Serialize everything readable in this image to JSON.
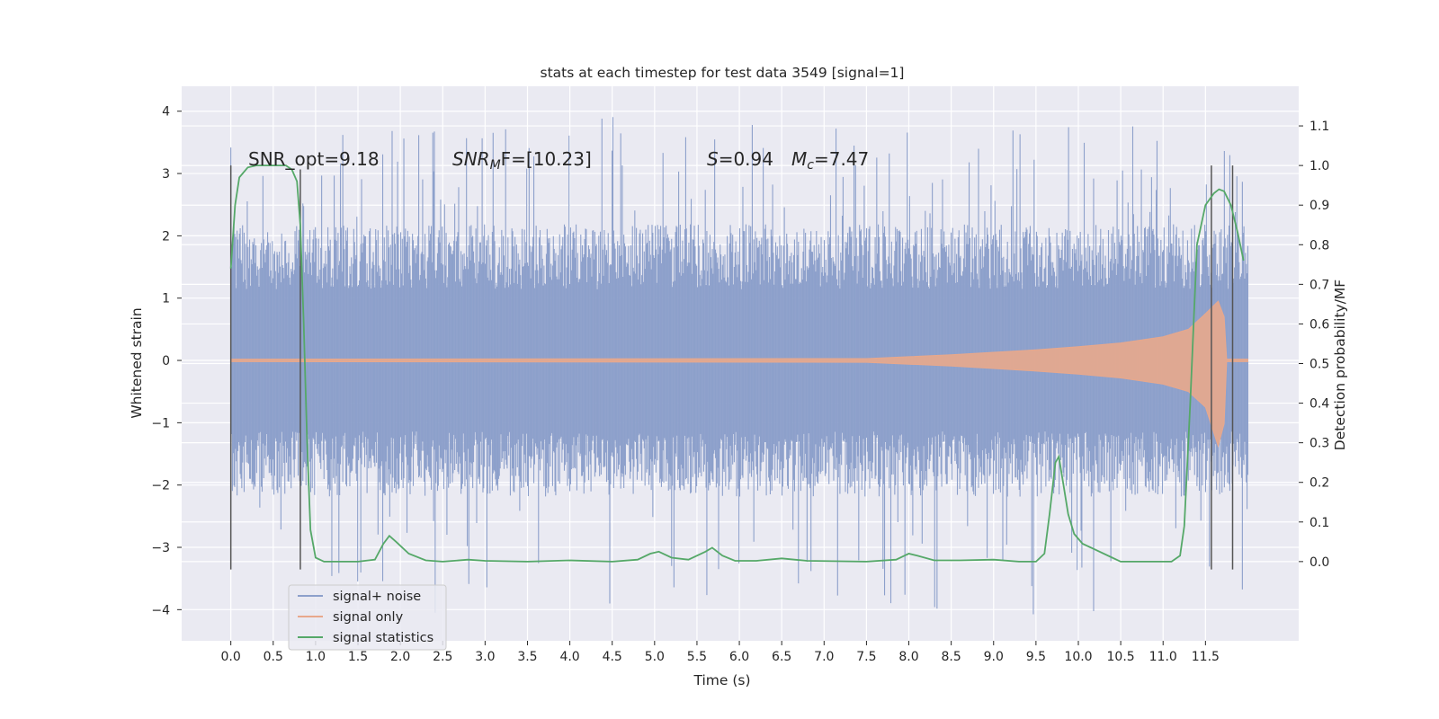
{
  "chart_data": {
    "type": "line",
    "title": "stats at each timestep for test data 3549 [signal=1]",
    "xlabel": "Time (s)",
    "ylabel_left": "Whitened strain",
    "ylabel_right": "Detection probability/MF",
    "xlim": [
      -0.58,
      12.6
    ],
    "ylim_left": [
      -4.5,
      4.4
    ],
    "ylim_right": [
      -0.2,
      1.2
    ],
    "x_ticks": [
      0.0,
      0.5,
      1.0,
      1.5,
      2.0,
      2.5,
      3.0,
      3.5,
      4.0,
      4.5,
      5.0,
      5.5,
      6.0,
      6.5,
      7.0,
      7.5,
      8.0,
      8.5,
      9.0,
      9.5,
      10.0,
      10.5,
      11.0,
      11.5
    ],
    "x_tick_labels": [
      "0.0",
      "0.5",
      "1.0",
      "1.5",
      "2.0",
      "2.5",
      "3.0",
      "3.5",
      "4.0",
      "4.5",
      "5.0",
      "5.5",
      "6.0",
      "6.5",
      "7.0",
      "7.5",
      "8.0",
      "8.5",
      "9.0",
      "9.5",
      "10.0",
      "10.5",
      "11.0",
      "11.5"
    ],
    "y_ticks_left": [
      4,
      3,
      2,
      1,
      0,
      -1,
      -2,
      -3,
      -4
    ],
    "y_tick_labels_left": [
      "4",
      "3",
      "2",
      "1",
      "0",
      "−1",
      "−2",
      "−3",
      "−4"
    ],
    "y_ticks_right": [
      1.1,
      1.0,
      0.9,
      0.8,
      0.7,
      0.6,
      0.5,
      0.4,
      0.3,
      0.2,
      0.1,
      0.0
    ],
    "y_tick_labels_right": [
      "1.1",
      "1.0",
      "0.9",
      "0.8",
      "0.7",
      "0.6",
      "0.5",
      "0.4",
      "0.3",
      "0.2",
      "0.1",
      "0.0"
    ],
    "grid": true,
    "legend_position": "lower-left",
    "annotations": {
      "snr_opt": "SNR_opt=9.18",
      "snr_mf_main": "SNR",
      "snr_mf_sub": "M",
      "snr_mf_rest": "F=[10.23]",
      "s_main": "S",
      "s_rest": "=0.94",
      "mc_main": "M",
      "mc_sub": "c",
      "mc_rest": "=7.47"
    },
    "series": [
      {
        "name": "signal+ noise",
        "color": "#8da0cb",
        "style": "noise envelope",
        "x_range": [
          0.0,
          12.0
        ],
        "typical_amplitude_upper": 1.9,
        "typical_amplitude_lower": -1.9,
        "max": 3.95,
        "min": -4.1
      },
      {
        "name": "signal only",
        "color": "#e8a88c",
        "style": "chirp envelope",
        "envelope": [
          [
            0.0,
            0.02
          ],
          [
            7.5,
            0.03
          ],
          [
            8.0,
            0.06
          ],
          [
            8.5,
            0.09
          ],
          [
            9.0,
            0.13
          ],
          [
            9.5,
            0.17
          ],
          [
            10.0,
            0.22
          ],
          [
            10.5,
            0.28
          ],
          [
            11.0,
            0.38
          ],
          [
            11.3,
            0.5
          ],
          [
            11.5,
            0.75
          ],
          [
            11.65,
            0.95
          ],
          [
            11.72,
            0.7
          ],
          [
            11.75,
            0.02
          ],
          [
            12.0,
            0.02
          ]
        ]
      },
      {
        "name": "signal statistics",
        "color": "#55a868",
        "axis": "right",
        "points": [
          [
            0.0,
            0.74
          ],
          [
            0.05,
            0.9
          ],
          [
            0.1,
            0.97
          ],
          [
            0.2,
            0.995
          ],
          [
            0.3,
            1.0
          ],
          [
            0.5,
            1.0
          ],
          [
            0.65,
            1.0
          ],
          [
            0.72,
            0.99
          ],
          [
            0.78,
            0.96
          ],
          [
            0.82,
            0.85
          ],
          [
            0.86,
            0.6
          ],
          [
            0.9,
            0.3
          ],
          [
            0.94,
            0.08
          ],
          [
            1.0,
            0.01
          ],
          [
            1.1,
            0.0
          ],
          [
            1.5,
            0.0
          ],
          [
            1.7,
            0.005
          ],
          [
            1.8,
            0.045
          ],
          [
            1.87,
            0.065
          ],
          [
            1.95,
            0.05
          ],
          [
            2.1,
            0.02
          ],
          [
            2.3,
            0.003
          ],
          [
            2.5,
            0.0
          ],
          [
            2.8,
            0.005
          ],
          [
            3.0,
            0.002
          ],
          [
            3.5,
            0.0
          ],
          [
            4.0,
            0.003
          ],
          [
            4.5,
            0.0
          ],
          [
            4.8,
            0.005
          ],
          [
            4.95,
            0.02
          ],
          [
            5.05,
            0.025
          ],
          [
            5.2,
            0.01
          ],
          [
            5.4,
            0.005
          ],
          [
            5.6,
            0.025
          ],
          [
            5.68,
            0.035
          ],
          [
            5.8,
            0.015
          ],
          [
            5.95,
            0.002
          ],
          [
            6.2,
            0.002
          ],
          [
            6.5,
            0.008
          ],
          [
            6.8,
            0.002
          ],
          [
            7.5,
            0.0
          ],
          [
            7.85,
            0.005
          ],
          [
            7.95,
            0.015
          ],
          [
            8.0,
            0.02
          ],
          [
            8.1,
            0.015
          ],
          [
            8.3,
            0.003
          ],
          [
            8.6,
            0.003
          ],
          [
            9.0,
            0.005
          ],
          [
            9.3,
            0.0
          ],
          [
            9.5,
            0.0
          ],
          [
            9.6,
            0.02
          ],
          [
            9.66,
            0.12
          ],
          [
            9.73,
            0.25
          ],
          [
            9.77,
            0.265
          ],
          [
            9.82,
            0.2
          ],
          [
            9.88,
            0.12
          ],
          [
            9.95,
            0.07
          ],
          [
            10.05,
            0.045
          ],
          [
            10.2,
            0.03
          ],
          [
            10.4,
            0.01
          ],
          [
            10.5,
            0.0
          ],
          [
            11.1,
            0.0
          ],
          [
            11.2,
            0.015
          ],
          [
            11.25,
            0.09
          ],
          [
            11.32,
            0.4
          ],
          [
            11.4,
            0.8
          ],
          [
            11.5,
            0.9
          ],
          [
            11.6,
            0.93
          ],
          [
            11.66,
            0.94
          ],
          [
            11.72,
            0.935
          ],
          [
            11.8,
            0.9
          ],
          [
            11.88,
            0.83
          ],
          [
            11.95,
            0.76
          ]
        ]
      }
    ],
    "markers": [
      {
        "x": 0.0,
        "range": [
          -0.02,
          1.0
        ]
      },
      {
        "x": 0.82,
        "range": [
          -0.02,
          0.99
        ]
      },
      {
        "x": 11.57,
        "range": [
          -0.02,
          1.0
        ]
      },
      {
        "x": 11.82,
        "range": [
          -0.02,
          1.0
        ]
      }
    ],
    "legend": [
      {
        "label": "signal+ noise",
        "color": "#8da0cb"
      },
      {
        "label": "signal only",
        "color": "#e8a88c"
      },
      {
        "label": "signal statistics",
        "color": "#55a868"
      }
    ]
  }
}
